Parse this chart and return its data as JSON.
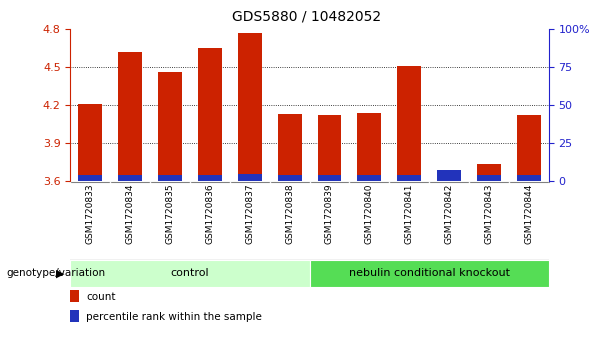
{
  "title": "GDS5880 / 10482052",
  "samples": [
    "GSM1720833",
    "GSM1720834",
    "GSM1720835",
    "GSM1720836",
    "GSM1720837",
    "GSM1720838",
    "GSM1720839",
    "GSM1720840",
    "GSM1720841",
    "GSM1720842",
    "GSM1720843",
    "GSM1720844"
  ],
  "red_values": [
    4.21,
    4.62,
    4.46,
    4.65,
    4.77,
    4.13,
    4.12,
    4.14,
    4.51,
    3.62,
    3.74,
    4.12
  ],
  "blue_heights": [
    0.055,
    0.055,
    0.05,
    0.055,
    0.062,
    0.05,
    0.05,
    0.05,
    0.055,
    0.09,
    0.05,
    0.055
  ],
  "ymin": 3.6,
  "ymax": 4.8,
  "yticks": [
    3.6,
    3.9,
    4.2,
    4.5,
    4.8
  ],
  "right_yticks": [
    0,
    25,
    50,
    75,
    100
  ],
  "right_ytick_labels": [
    "0",
    "25",
    "50",
    "75",
    "100%"
  ],
  "bar_color": "#cc2200",
  "blue_color": "#2233bb",
  "bar_width": 0.6,
  "groups": [
    {
      "label": "control",
      "start": 0,
      "end": 5,
      "color": "#ccffcc"
    },
    {
      "label": "nebulin conditional knockout",
      "start": 6,
      "end": 11,
      "color": "#55dd55"
    }
  ],
  "group_label_prefix": "genotype/variation",
  "legend_items": [
    {
      "color": "#cc2200",
      "label": "count"
    },
    {
      "color": "#2233bb",
      "label": "percentile rank within the sample"
    }
  ],
  "tick_label_color": "#cc2200",
  "right_axis_color": "#2222cc",
  "bg_tick_area": "#cccccc",
  "grid_color": "#000000"
}
